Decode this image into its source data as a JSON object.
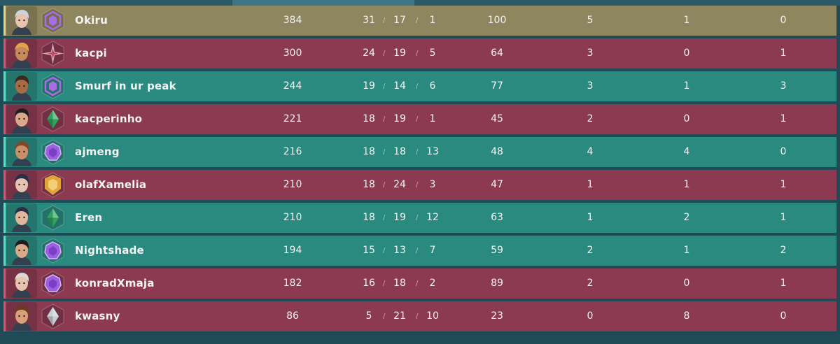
{
  "colors": {
    "win_row": "#2b8a7f",
    "loss_row": "#8b3a52",
    "self_row": "#8e865f",
    "win_edge": "#4fe6c3",
    "loss_edge": "#e0506e",
    "self_edge": "#e6d27a"
  },
  "separator": "/",
  "players": [
    {
      "name": "Okiru",
      "acs": "384",
      "kills": "31",
      "deaths": "17",
      "assists": "1",
      "adr": "100",
      "first_bloods": "5",
      "first_deaths": "1",
      "plants": "0",
      "team": "self",
      "rank_icon": "amethyst-rank-icon",
      "rank_color": "#a66ee0",
      "agent_icon": "agent-portrait-icon",
      "skin": "#e8c4b0",
      "hair": "#c9d4de"
    },
    {
      "name": "kacpi",
      "acs": "300",
      "kills": "24",
      "deaths": "19",
      "assists": "5",
      "adr": "64",
      "first_bloods": "3",
      "first_deaths": "0",
      "plants": "1",
      "team": "loss",
      "rank_icon": "radiant-star-rank-icon",
      "rank_color": "#d9a7b8",
      "agent_icon": "agent-portrait-icon",
      "skin": "#c88a5c",
      "hair": "#e0a54a"
    },
    {
      "name": "Smurf in ur peak",
      "acs": "244",
      "kills": "19",
      "deaths": "14",
      "assists": "6",
      "adr": "77",
      "first_bloods": "3",
      "first_deaths": "1",
      "plants": "3",
      "team": "win",
      "rank_icon": "amethyst-rank-icon",
      "rank_color": "#a66ee0",
      "agent_icon": "agent-portrait-icon",
      "skin": "#a86b43",
      "hair": "#3b2a20"
    },
    {
      "name": "kacperinho",
      "acs": "221",
      "kills": "18",
      "deaths": "19",
      "assists": "1",
      "adr": "45",
      "first_bloods": "2",
      "first_deaths": "0",
      "plants": "1",
      "team": "loss",
      "rank_icon": "emerald-rank-icon",
      "rank_color": "#2fa35e",
      "agent_icon": "agent-portrait-icon",
      "skin": "#d9a98a",
      "hair": "#1d1d24"
    },
    {
      "name": "ajmeng",
      "acs": "216",
      "kills": "18",
      "deaths": "18",
      "assists": "13",
      "adr": "48",
      "first_bloods": "4",
      "first_deaths": "4",
      "plants": "0",
      "team": "win",
      "rank_icon": "amethyst-round-rank-icon",
      "rank_color": "#9b5fe0",
      "agent_icon": "agent-portrait-icon",
      "skin": "#c98f68",
      "hair": "#7a4a2a"
    },
    {
      "name": "olafXamelia",
      "acs": "210",
      "kills": "18",
      "deaths": "24",
      "assists": "3",
      "adr": "47",
      "first_bloods": "1",
      "first_deaths": "1",
      "plants": "1",
      "team": "loss",
      "rank_icon": "gold-rank-icon",
      "rank_color": "#e0a43a",
      "agent_icon": "agent-portrait-icon",
      "skin": "#e6c3b0",
      "hair": "#2a2e45"
    },
    {
      "name": "Eren",
      "acs": "210",
      "kills": "18",
      "deaths": "19",
      "assists": "12",
      "adr": "63",
      "first_bloods": "1",
      "first_deaths": "2",
      "plants": "1",
      "team": "win",
      "rank_icon": "emerald-rank-icon",
      "rank_color": "#2fa35e",
      "agent_icon": "agent-portrait-icon",
      "skin": "#e0b79c",
      "hair": "#27304a"
    },
    {
      "name": "Nightshade",
      "acs": "194",
      "kills": "15",
      "deaths": "13",
      "assists": "7",
      "adr": "59",
      "first_bloods": "2",
      "first_deaths": "1",
      "plants": "2",
      "team": "win",
      "rank_icon": "amethyst-round-rank-icon",
      "rank_color": "#9b5fe0",
      "agent_icon": "agent-portrait-icon",
      "skin": "#d9a98a",
      "hair": "#1d1d24"
    },
    {
      "name": "konradXmaja",
      "acs": "182",
      "kills": "16",
      "deaths": "18",
      "assists": "2",
      "adr": "89",
      "first_bloods": "2",
      "first_deaths": "0",
      "plants": "1",
      "team": "loss",
      "rank_icon": "amethyst-round-rank-icon",
      "rank_color": "#9b5fe0",
      "agent_icon": "agent-portrait-icon",
      "skin": "#e8c4b0",
      "hair": "#d8d8d8"
    },
    {
      "name": "kwasny",
      "acs": "86",
      "kills": "5",
      "deaths": "21",
      "assists": "10",
      "adr": "23",
      "first_bloods": "0",
      "first_deaths": "8",
      "plants": "0",
      "team": "loss",
      "rank_icon": "silver-rank-icon",
      "rank_color": "#c9ced4",
      "agent_icon": "agent-portrait-icon",
      "skin": "#d9a07a",
      "hair": "#6b3a20"
    }
  ]
}
